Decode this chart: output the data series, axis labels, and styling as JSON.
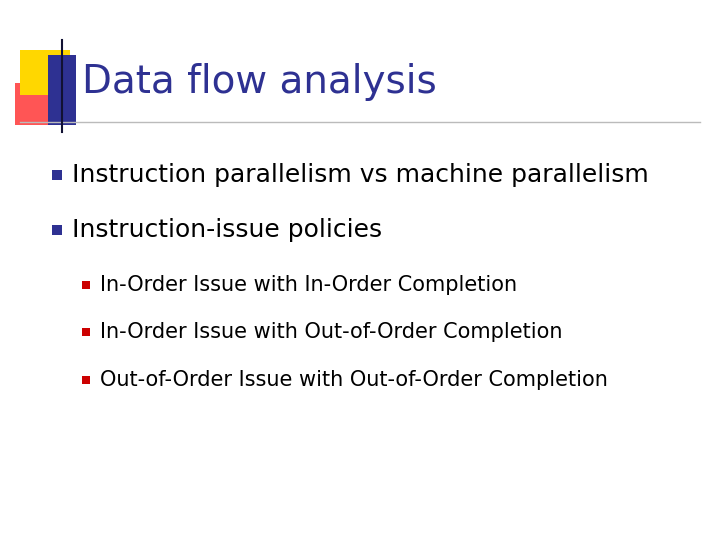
{
  "title": "Data flow analysis",
  "title_color": "#2E3192",
  "title_fontsize": 28,
  "background_color": "#FFFFFF",
  "bullet1": "Instruction parallelism vs machine parallelism",
  "bullet2": "Instruction-issue policies",
  "sub_bullets": [
    "In-Order Issue with In-Order Completion",
    "In-Order Issue with Out-of-Order Completion",
    "Out-of-Order Issue with Out-of-Order Completion"
  ],
  "bullet_color": "#2E3192",
  "sub_bullet_color": "#CC0000",
  "text_color": "#000000",
  "bullet_fontsize": 18,
  "sub_bullet_fontsize": 15,
  "line_color": "#BBBBBB",
  "decor_yellow": "#FFD700",
  "decor_red": "#FF5555",
  "decor_blue": "#2E3192"
}
